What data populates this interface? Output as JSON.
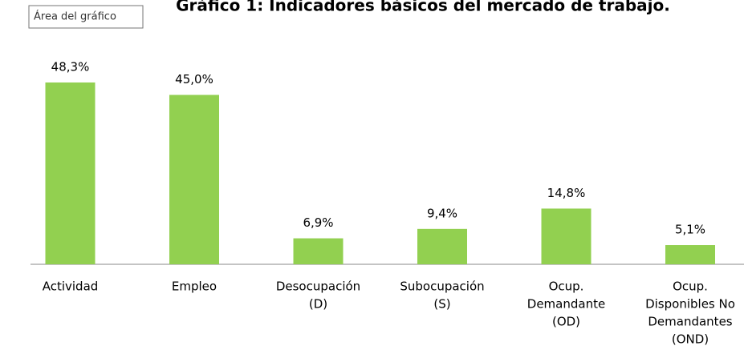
{
  "tooltip": "Área del gráfico",
  "chart_data": {
    "type": "bar",
    "title": "Gráfico 1: Indicadores básicos del mercado de trabajo.",
    "categories": [
      [
        "Actividad"
      ],
      [
        "Empleo"
      ],
      [
        "Desocupación",
        "(D)"
      ],
      [
        "Subocupación",
        "(S)"
      ],
      [
        "Ocup.",
        "Demandante",
        "(OD)"
      ],
      [
        "Ocup.",
        "Disponibles No",
        "Demandantes",
        "(OND)"
      ]
    ],
    "values": [
      48.3,
      45.0,
      6.9,
      9.4,
      14.8,
      5.1
    ],
    "value_labels": [
      "48,3%",
      "45,0%",
      "6,9%",
      "9,4%",
      "14,8%",
      "5,1%"
    ],
    "color": "#92d050"
  }
}
